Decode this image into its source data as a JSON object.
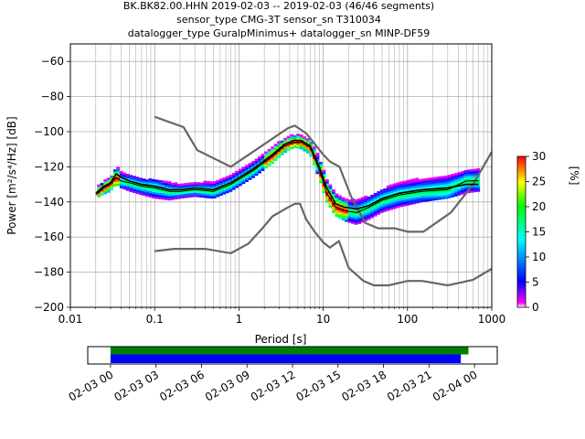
{
  "chart_data": {
    "type": "heatmap",
    "title_lines": [
      "BK.BK82.00.HHN   2019-02-03 -- 2019-02-03  (46/46 segments)",
      "sensor_type CMG-3T sensor_sn T310034",
      "datalogger_type GuralpMinimus+ datalogger_sn MINP-DF59"
    ],
    "xlabel": "Period [s]",
    "ylabel": "Power [m²/s⁴/Hz] [dB]",
    "x_scale": "log",
    "xlim": [
      0.01,
      1000
    ],
    "ylim": [
      -200,
      -50
    ],
    "x_ticks": [
      {
        "v": 0.01,
        "label": "0.01"
      },
      {
        "v": 0.1,
        "label": "0.1"
      },
      {
        "v": 1,
        "label": "1"
      },
      {
        "v": 10,
        "label": "10"
      },
      {
        "v": 100,
        "label": "100"
      },
      {
        "v": 1000,
        "label": "1000"
      }
    ],
    "y_ticks": [
      {
        "v": -60,
        "label": "−60"
      },
      {
        "v": -80,
        "label": "−80"
      },
      {
        "v": -100,
        "label": "−100"
      },
      {
        "v": -120,
        "label": "−120"
      },
      {
        "v": -140,
        "label": "−140"
      },
      {
        "v": -160,
        "label": "−160"
      },
      {
        "v": -180,
        "label": "−180"
      },
      {
        "v": -200,
        "label": "−200"
      }
    ],
    "grid": true,
    "colorbar": {
      "label": "[%]",
      "range": [
        0,
        30
      ],
      "ticks": [
        {
          "v": 0,
          "label": "0"
        },
        {
          "v": 5,
          "label": "5"
        },
        {
          "v": 10,
          "label": "10"
        },
        {
          "v": 15,
          "label": "15"
        },
        {
          "v": 20,
          "label": "20"
        },
        {
          "v": 25,
          "label": "25"
        },
        {
          "v": 30,
          "label": "30"
        }
      ],
      "colors": [
        "#ffffff",
        "#ff00ff",
        "#0000ff",
        "#00ffff",
        "#00ff00",
        "#ffff00",
        "#ff0000"
      ]
    },
    "noise_model_high": [
      [
        0.1,
        -91.5
      ],
      [
        0.22,
        -97.4
      ],
      [
        0.32,
        -110.5
      ],
      [
        0.8,
        -120
      ],
      [
        3.8,
        -98
      ],
      [
        4.6,
        -96.5
      ],
      [
        6.3,
        -101
      ],
      [
        10,
        -113
      ],
      [
        12,
        -117
      ],
      [
        15.6,
        -120
      ],
      [
        21.9,
        -138
      ],
      [
        31.6,
        -152
      ],
      [
        45,
        -155
      ],
      [
        70,
        -155
      ],
      [
        101,
        -157
      ],
      [
        154,
        -157
      ],
      [
        328,
        -146
      ],
      [
        600,
        -130
      ],
      [
        1000,
        -111.5
      ]
    ],
    "noise_model_low": [
      [
        0.1,
        -168
      ],
      [
        0.17,
        -166.7
      ],
      [
        0.4,
        -166.7
      ],
      [
        0.8,
        -169.2
      ],
      [
        1.3,
        -163.7
      ],
      [
        1.9,
        -155
      ],
      [
        2.5,
        -148.2
      ],
      [
        3.8,
        -143.1
      ],
      [
        4.6,
        -141.1
      ],
      [
        5.3,
        -141
      ],
      [
        6.3,
        -150
      ],
      [
        7.9,
        -157
      ],
      [
        10,
        -163
      ],
      [
        12,
        -166
      ],
      [
        15.4,
        -162.3
      ],
      [
        20,
        -177.5
      ],
      [
        30,
        -185
      ],
      [
        40,
        -187.5
      ],
      [
        60,
        -187.5
      ],
      [
        100,
        -185
      ],
      [
        150,
        -185
      ],
      [
        300,
        -187.5
      ],
      [
        600,
        -184.4
      ],
      [
        1000,
        -178
      ]
    ],
    "mean_psd": [
      [
        0.02,
        -135
      ],
      [
        0.025,
        -131
      ],
      [
        0.03,
        -129
      ],
      [
        0.035,
        -124
      ],
      [
        0.04,
        -126
      ],
      [
        0.05,
        -128
      ],
      [
        0.07,
        -130
      ],
      [
        0.1,
        -131
      ],
      [
        0.15,
        -133
      ],
      [
        0.2,
        -133
      ],
      [
        0.3,
        -132
      ],
      [
        0.5,
        -133
      ],
      [
        0.8,
        -129
      ],
      [
        1.5,
        -121
      ],
      [
        2.5,
        -113
      ],
      [
        3.5,
        -107
      ],
      [
        4.5,
        -105
      ],
      [
        5.5,
        -105
      ],
      [
        7,
        -108
      ],
      [
        9,
        -120
      ],
      [
        11,
        -132
      ],
      [
        14,
        -141
      ],
      [
        18,
        -143
      ],
      [
        25,
        -144
      ],
      [
        35,
        -142
      ],
      [
        50,
        -138
      ],
      [
        80,
        -135
      ],
      [
        150,
        -133
      ],
      [
        300,
        -132
      ],
      [
        500,
        -130
      ],
      [
        700,
        -130
      ]
    ],
    "mode_psd": [
      [
        0.02,
        -136
      ],
      [
        0.025,
        -132
      ],
      [
        0.03,
        -130
      ],
      [
        0.035,
        -126
      ],
      [
        0.04,
        -128
      ],
      [
        0.05,
        -129
      ],
      [
        0.07,
        -131
      ],
      [
        0.1,
        -132
      ],
      [
        0.15,
        -134
      ],
      [
        0.2,
        -134
      ],
      [
        0.3,
        -133
      ],
      [
        0.5,
        -134
      ],
      [
        0.8,
        -130
      ],
      [
        1.5,
        -122
      ],
      [
        2.5,
        -114
      ],
      [
        3.5,
        -108
      ],
      [
        4.5,
        -106
      ],
      [
        5.5,
        -106
      ],
      [
        7,
        -109
      ],
      [
        9,
        -122
      ],
      [
        11,
        -135
      ],
      [
        14,
        -143
      ],
      [
        18,
        -145
      ],
      [
        25,
        -146
      ],
      [
        35,
        -143
      ],
      [
        50,
        -139
      ],
      [
        80,
        -136
      ],
      [
        150,
        -134
      ],
      [
        300,
        -133
      ],
      [
        500,
        -128
      ],
      [
        700,
        -128
      ]
    ],
    "upper_envelope": [
      [
        0.02,
        -132
      ],
      [
        0.03,
        -126
      ],
      [
        0.035,
        -120
      ],
      [
        0.04,
        -123
      ],
      [
        0.05,
        -125
      ],
      [
        0.07,
        -127
      ],
      [
        0.1,
        -128
      ],
      [
        0.15,
        -129
      ],
      [
        0.2,
        -130
      ],
      [
        0.3,
        -129
      ],
      [
        0.5,
        -129
      ],
      [
        0.8,
        -125
      ],
      [
        1.5,
        -117
      ],
      [
        2.5,
        -109
      ],
      [
        3.5,
        -104
      ],
      [
        4.5,
        -102
      ],
      [
        5.5,
        -102
      ],
      [
        7,
        -105
      ],
      [
        9,
        -115
      ],
      [
        11,
        -128
      ],
      [
        14,
        -136
      ],
      [
        18,
        -139
      ],
      [
        25,
        -139
      ],
      [
        35,
        -137
      ],
      [
        50,
        -133
      ],
      [
        80,
        -129
      ],
      [
        150,
        -127
      ],
      [
        300,
        -125
      ],
      [
        500,
        -122
      ],
      [
        700,
        -121
      ]
    ],
    "lower_envelope": [
      [
        0.02,
        -138
      ],
      [
        0.03,
        -134
      ],
      [
        0.035,
        -130
      ],
      [
        0.04,
        -132
      ],
      [
        0.05,
        -134
      ],
      [
        0.07,
        -136
      ],
      [
        0.1,
        -138
      ],
      [
        0.15,
        -139
      ],
      [
        0.2,
        -138
      ],
      [
        0.3,
        -137
      ],
      [
        0.5,
        -138
      ],
      [
        0.8,
        -134
      ],
      [
        1.5,
        -126
      ],
      [
        2.5,
        -118
      ],
      [
        3.5,
        -112
      ],
      [
        4.5,
        -109
      ],
      [
        5.5,
        -110
      ],
      [
        7,
        -113
      ],
      [
        9,
        -127
      ],
      [
        11,
        -140
      ],
      [
        14,
        -148
      ],
      [
        18,
        -151
      ],
      [
        25,
        -153
      ],
      [
        35,
        -150
      ],
      [
        50,
        -146
      ],
      [
        80,
        -143
      ],
      [
        150,
        -140
      ],
      [
        300,
        -138
      ],
      [
        500,
        -135
      ],
      [
        700,
        -134
      ]
    ],
    "timeline": {
      "ticks": [
        "02-03 00",
        "02-03 03",
        "02-03 06",
        "02-03 09",
        "02-03 12",
        "02-03 15",
        "02-03 18",
        "02-03 21",
        "02-04 00"
      ],
      "hours_range": [
        -1.5,
        25.5
      ],
      "data_coverage": [
        0,
        23.6
      ],
      "psd_coverage": [
        0,
        23.1
      ],
      "colors": {
        "data": "#008000",
        "psd": "#0000ff"
      }
    }
  }
}
